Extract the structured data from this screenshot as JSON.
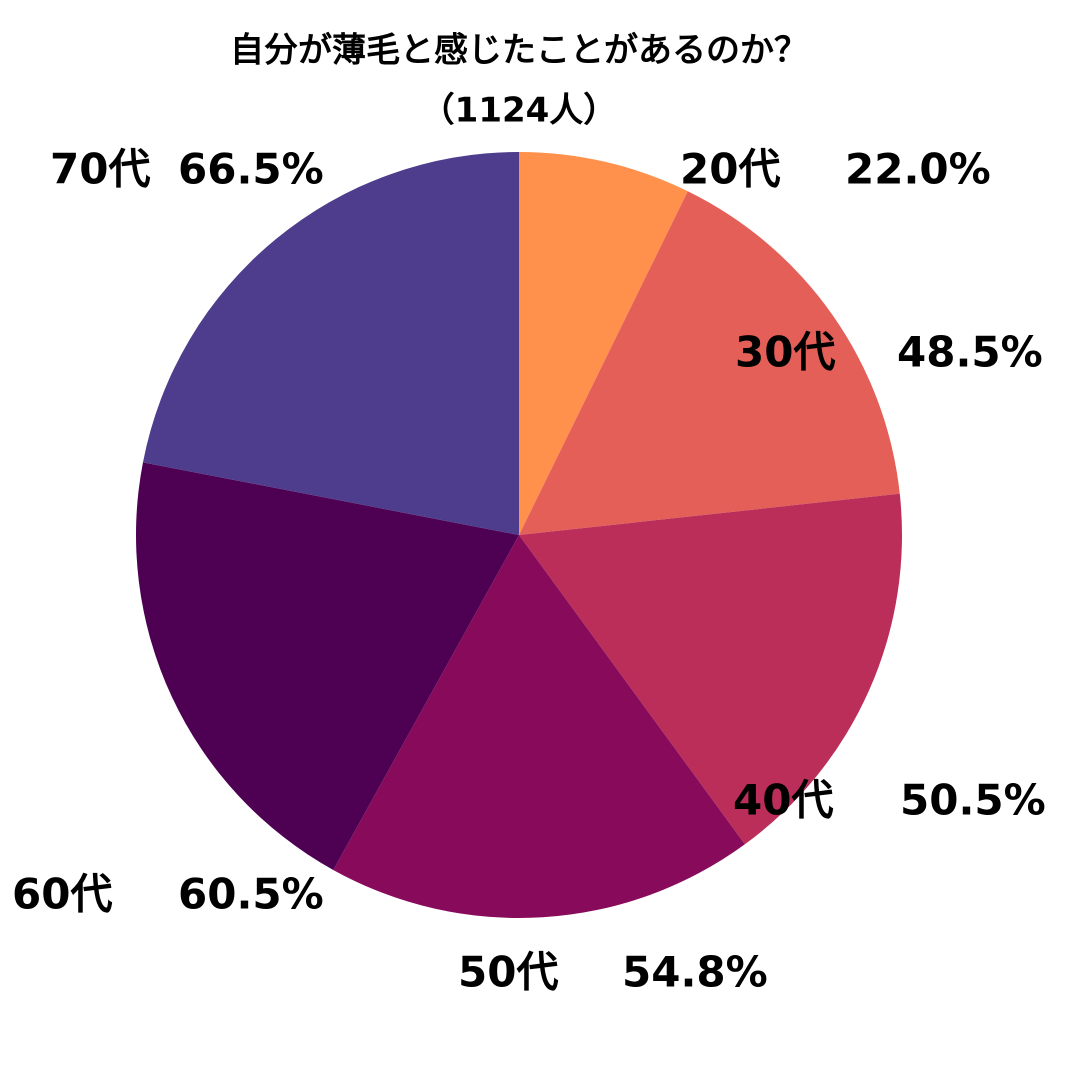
{
  "chart_data": {
    "type": "pie",
    "title": "自分が薄毛と感じたことがあるのか？",
    "subtitle": "（1124人）",
    "categories": [
      "20代",
      "30代",
      "40代",
      "50代",
      "60代",
      "70代"
    ],
    "values": [
      22.0,
      48.5,
      50.5,
      54.8,
      60.5,
      66.5
    ],
    "value_labels": [
      "22.0%",
      "48.5%",
      "50.5%",
      "54.8%",
      "60.5%",
      "66.5%"
    ],
    "colors": [
      "#FF914D",
      "#E35F57",
      "#BB2E5A",
      "#880B5B",
      "#4E0053",
      "#4E3C8C"
    ]
  }
}
